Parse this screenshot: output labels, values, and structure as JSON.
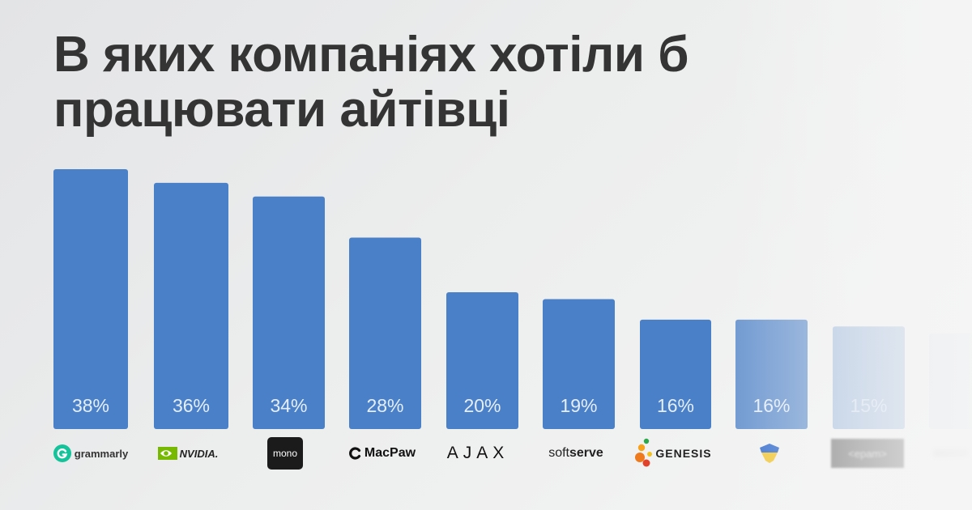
{
  "title": "В яких компаніях хотіли б працювати айтівці",
  "colors": {
    "bar": "#4a80c8",
    "title": "#343434",
    "background": "#ececec"
  },
  "chart_data": {
    "type": "bar",
    "title": "В яких компаніях хотіли б працювати айтівці",
    "categories": [
      "grammarly",
      "NVIDIA",
      "mono",
      "MacPaw",
      "AJAX",
      "softserve",
      "GENESIS",
      "",
      "epam",
      ""
    ],
    "values": [
      38,
      36,
      34,
      28,
      20,
      19,
      16,
      16,
      15,
      14
    ],
    "value_labels": [
      "38%",
      "36%",
      "34%",
      "28%",
      "20%",
      "19%",
      "16%",
      "16%",
      "15%",
      ""
    ],
    "xlabel": "",
    "ylabel": "",
    "ylim": [
      0,
      38
    ],
    "grid": false,
    "legend": "none",
    "faded_tail": true
  },
  "logos": {
    "grammarly": {
      "text": "grammarly",
      "icon": "grammarly-g-icon"
    },
    "nvidia": {
      "text": "NVIDIA.",
      "icon": "nvidia-eye-icon"
    },
    "mono": {
      "text": "mono"
    },
    "macpaw": {
      "text": "MacPaw",
      "icon": "macpaw-c-icon"
    },
    "ajax": {
      "text": "AJAX"
    },
    "softserve_a": {
      "text": "soft"
    },
    "softserve_b": {
      "text": "serve"
    },
    "genesis": {
      "text": "GENESIS",
      "icon": "genesis-dots-icon"
    },
    "ukraine": {
      "icon": "ukraine-shield-icon"
    },
    "epam": {
      "text": "<epam>"
    }
  }
}
